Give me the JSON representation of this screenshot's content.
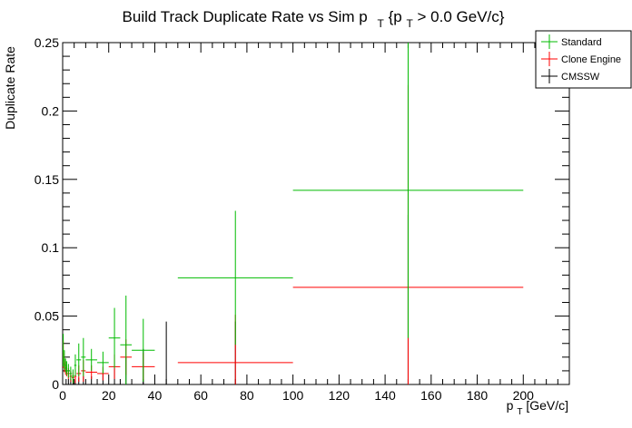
{
  "chart_data": {
    "type": "scatter",
    "title": {
      "prefix": "Build Track Duplicate Rate vs Sim p",
      "sub1": "T",
      "mid": " {p",
      "sub2": "T",
      "suffix": " > 0.0 GeV/c}"
    },
    "xlabel": {
      "main": "p",
      "sub": "T",
      "unit": " [GeV/c]"
    },
    "ylabel": "Duplicate Rate",
    "xlim": [
      0,
      220
    ],
    "ylim": [
      0,
      0.25
    ],
    "x_ticks": [
      0,
      20,
      40,
      60,
      80,
      100,
      120,
      140,
      160,
      180,
      200
    ],
    "y_ticks": [
      0,
      0.05,
      0.1,
      0.15,
      0.2,
      0.25
    ],
    "y_tick_labels": [
      "0",
      "0.05",
      "0.1",
      "0.15",
      "0.2",
      "0.25"
    ],
    "grid": false,
    "legend_position": "top-right",
    "series": [
      {
        "name": "Standard",
        "color": "#00bb00",
        "points": [
          {
            "x": 0.25,
            "xerr": 0.25,
            "y": 0.025,
            "yerr": 0.012
          },
          {
            "x": 0.75,
            "xerr": 0.25,
            "y": 0.018,
            "yerr": 0.007
          },
          {
            "x": 1.25,
            "xerr": 0.25,
            "y": 0.014,
            "yerr": 0.005
          },
          {
            "x": 1.75,
            "xerr": 0.25,
            "y": 0.012,
            "yerr": 0.005
          },
          {
            "x": 2.5,
            "xerr": 0.5,
            "y": 0.01,
            "yerr": 0.005
          },
          {
            "x": 3.5,
            "xerr": 0.5,
            "y": 0.008,
            "yerr": 0.005
          },
          {
            "x": 4.5,
            "xerr": 0.5,
            "y": 0.006,
            "yerr": 0.005
          },
          {
            "x": 5.5,
            "xerr": 0.5,
            "y": 0.014,
            "yerr": 0.008
          },
          {
            "x": 7.0,
            "xerr": 1.0,
            "y": 0.018,
            "yerr": 0.012
          },
          {
            "x": 9.0,
            "xerr": 1.0,
            "y": 0.02,
            "yerr": 0.014
          },
          {
            "x": 12.5,
            "xerr": 2.5,
            "y": 0.018,
            "yerr": 0.008
          },
          {
            "x": 17.5,
            "xerr": 2.5,
            "y": 0.016,
            "yerr": 0.008
          },
          {
            "x": 22.5,
            "xerr": 2.5,
            "y": 0.034,
            "yerr": 0.022
          },
          {
            "x": 27.5,
            "xerr": 2.5,
            "y": 0.029,
            "yerr": 0.036
          },
          {
            "x": 35.0,
            "xerr": 5.0,
            "y": 0.025,
            "yerr": 0.023
          },
          {
            "x": 75.0,
            "xerr": 25.0,
            "y": 0.078,
            "yerr": 0.049
          },
          {
            "x": 150.0,
            "xerr": 50.0,
            "y": 0.142,
            "yerr": 0.108
          }
        ]
      },
      {
        "name": "Clone Engine",
        "color": "#ff0000",
        "points": [
          {
            "x": 0.25,
            "xerr": 0.25,
            "y": 0.022,
            "yerr": 0.01
          },
          {
            "x": 0.75,
            "xerr": 0.25,
            "y": 0.015,
            "yerr": 0.006
          },
          {
            "x": 1.25,
            "xerr": 0.25,
            "y": 0.012,
            "yerr": 0.005
          },
          {
            "x": 1.75,
            "xerr": 0.25,
            "y": 0.01,
            "yerr": 0.004
          },
          {
            "x": 2.5,
            "xerr": 0.5,
            "y": 0.008,
            "yerr": 0.004
          },
          {
            "x": 3.5,
            "xerr": 0.5,
            "y": 0.006,
            "yerr": 0.004
          },
          {
            "x": 4.5,
            "xerr": 0.5,
            "y": 0.005,
            "yerr": 0.004
          },
          {
            "x": 5.5,
            "xerr": 0.5,
            "y": 0.006,
            "yerr": 0.005
          },
          {
            "x": 7.0,
            "xerr": 1.0,
            "y": 0.008,
            "yerr": 0.006
          },
          {
            "x": 9.0,
            "xerr": 1.0,
            "y": 0.01,
            "yerr": 0.008
          },
          {
            "x": 12.5,
            "xerr": 2.5,
            "y": 0.009,
            "yerr": 0.005
          },
          {
            "x": 17.5,
            "xerr": 2.5,
            "y": 0.008,
            "yerr": 0.005
          },
          {
            "x": 22.5,
            "xerr": 2.5,
            "y": 0.013,
            "yerr": 0.009
          },
          {
            "x": 27.5,
            "xerr": 2.5,
            "y": 0.02,
            "yerr": 0.013
          },
          {
            "x": 35.0,
            "xerr": 5.0,
            "y": 0.013,
            "yerr": 0.01
          },
          {
            "x": 75.0,
            "xerr": 25.0,
            "y": 0.016,
            "yerr": 0.035
          },
          {
            "x": 150.0,
            "xerr": 50.0,
            "y": 0.071,
            "yerr": 0.148
          }
        ]
      },
      {
        "name": "CMSSW",
        "color": "#000000",
        "points": [
          {
            "x": 1.5,
            "xerr": 0.5,
            "y": 0.0,
            "yerr": 0.004
          },
          {
            "x": 2.5,
            "xerr": 0.5,
            "y": 0.0,
            "yerr": 0.004
          },
          {
            "x": 3.5,
            "xerr": 0.5,
            "y": 0.0,
            "yerr": 0.004
          },
          {
            "x": 4.5,
            "xerr": 0.5,
            "y": 0.0,
            "yerr": 0.004
          },
          {
            "x": 5.5,
            "xerr": 0.5,
            "y": 0.0,
            "yerr": 0.003
          },
          {
            "x": 7.0,
            "xerr": 1.0,
            "y": 0.0,
            "yerr": 0.005
          },
          {
            "x": 9.0,
            "xerr": 1.0,
            "y": 0.0,
            "yerr": 0.006
          },
          {
            "x": 12.5,
            "xerr": 2.5,
            "y": 0.0,
            "yerr": 0.006
          },
          {
            "x": 17.5,
            "xerr": 2.5,
            "y": 0.0,
            "yerr": 0.008
          },
          {
            "x": 22.5,
            "xerr": 2.5,
            "y": 0.0,
            "yerr": 0.012
          },
          {
            "x": 27.5,
            "xerr": 2.5,
            "y": 0.0,
            "yerr": 0.02
          },
          {
            "x": 35.0,
            "xerr": 5.0,
            "y": 0.0,
            "yerr": 0.026
          },
          {
            "x": 45.0,
            "xerr": 5.0,
            "y": 0.0,
            "yerr": 0.046
          },
          {
            "x": 75.0,
            "xerr": 25.0,
            "y": 0.0,
            "yerr": 0.046
          },
          {
            "x": 150.0,
            "xerr": 50.0,
            "y": 0.0,
            "yerr": 0.124
          }
        ]
      }
    ]
  }
}
